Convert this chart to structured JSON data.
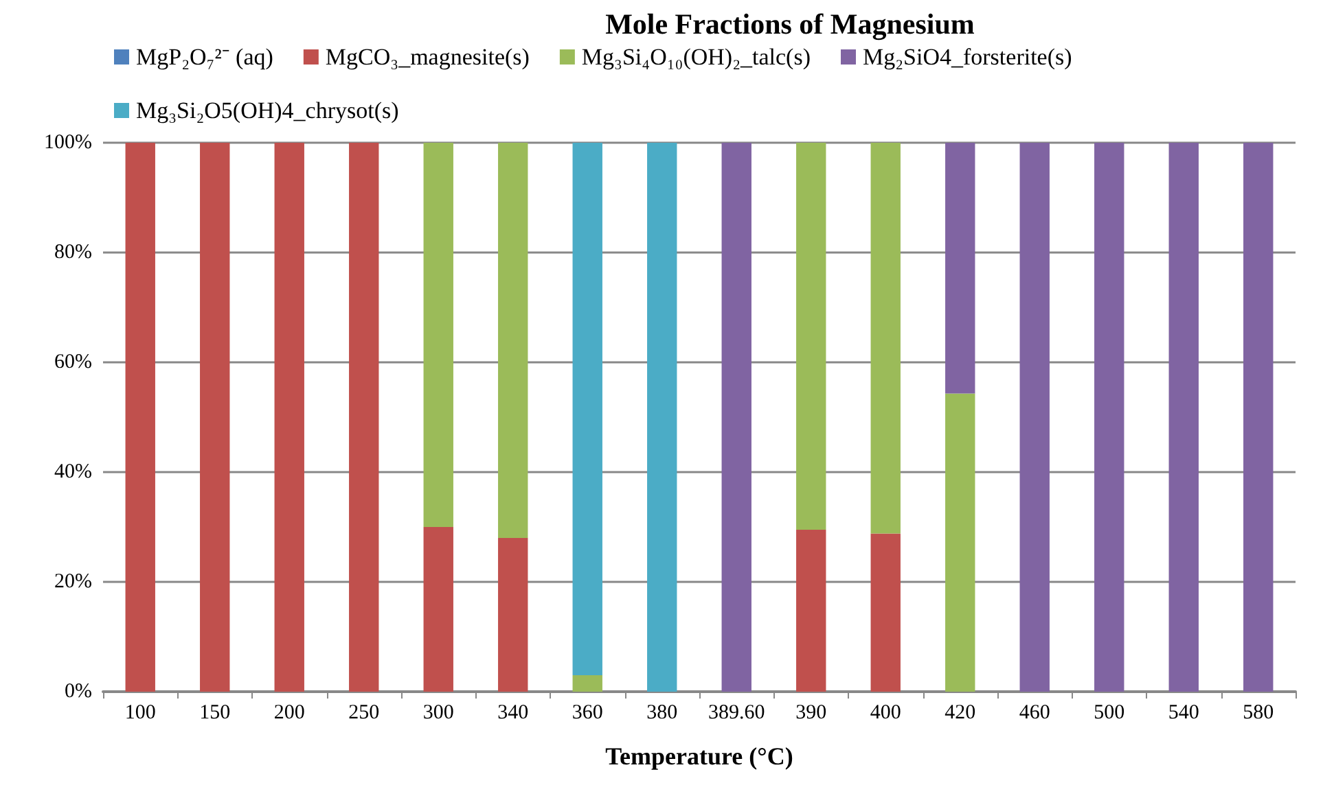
{
  "chart_data": {
    "type": "bar",
    "stacked": true,
    "title": "Mole Fractions of Magnesium",
    "xlabel": "Temperature (°C)",
    "categories": [
      "100",
      "150",
      "200",
      "250",
      "300",
      "340",
      "360",
      "380",
      "389.60",
      "390",
      "400",
      "420",
      "460",
      "500",
      "540",
      "580"
    ],
    "series": [
      {
        "name": "MgP₂O₇²⁻ (aq)",
        "color": "#4f81bd",
        "values": [
          0,
          0,
          0,
          0,
          0,
          0,
          0,
          0,
          0,
          0,
          0,
          0,
          0,
          0,
          0,
          0
        ]
      },
      {
        "name": "MgCO₃_magnesite(s)",
        "color": "#c0504d",
        "values": [
          100,
          100,
          100,
          100,
          30,
          28,
          0,
          0,
          0,
          29.5,
          28.8,
          0,
          0,
          0,
          0,
          0
        ]
      },
      {
        "name": "Mg₃Si₄O₁₀(OH)₂_talc(s)",
        "color": "#9bbb59",
        "values": [
          0,
          0,
          0,
          0,
          70,
          72,
          3,
          0,
          0,
          70.5,
          71.2,
          54.3,
          0,
          0,
          0,
          0
        ]
      },
      {
        "name": "Mg₂SiO4_forsterite(s)",
        "color": "#8064a2",
        "values": [
          0,
          0,
          0,
          0,
          0,
          0,
          0,
          0,
          100,
          0,
          0,
          45.7,
          100,
          100,
          100,
          100
        ]
      },
      {
        "name": "Mg₃Si₂O5(OH)4_chrysot(s)",
        "color": "#4bacc6",
        "values": [
          0,
          0,
          0,
          0,
          0,
          0,
          97,
          100,
          0,
          0,
          0,
          0,
          0,
          0,
          0,
          0
        ]
      }
    ],
    "ylim": [
      0,
      100
    ],
    "yticks": [
      {
        "value": 0,
        "label": "0%"
      },
      {
        "value": 20,
        "label": "20%"
      },
      {
        "value": 40,
        "label": "40%"
      },
      {
        "value": 60,
        "label": "60%"
      },
      {
        "value": 80,
        "label": "80%"
      },
      {
        "value": 100,
        "label": "100%"
      }
    ],
    "grid": "y",
    "legend": "top"
  }
}
